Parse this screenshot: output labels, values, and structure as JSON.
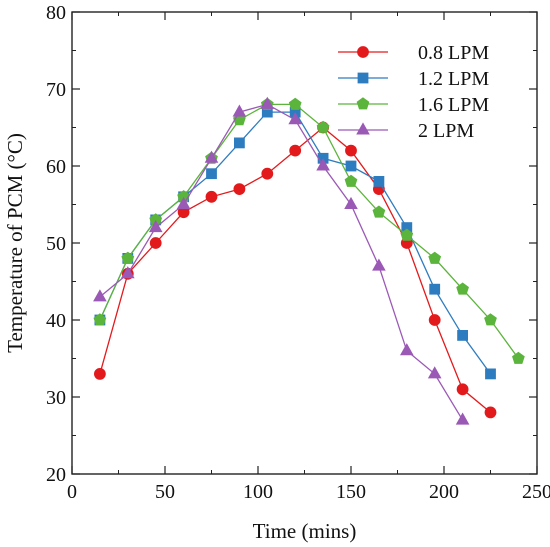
{
  "chart_data": {
    "type": "line",
    "title": "",
    "xlabel": "Time (mins)",
    "ylabel": "Temperature of PCM (°C)",
    "xlim": [
      0,
      250
    ],
    "ylim": [
      20,
      80
    ],
    "xticks": [
      0,
      50,
      100,
      150,
      200,
      250
    ],
    "yticks": [
      20,
      30,
      40,
      50,
      60,
      70,
      80
    ],
    "grid": false,
    "legend_position": "top-right",
    "series": [
      {
        "name": "0.8 LPM",
        "color": "#e31a1c",
        "marker": "circle",
        "points": [
          [
            15,
            33
          ],
          [
            30,
            46
          ],
          [
            45,
            50
          ],
          [
            60,
            54
          ],
          [
            75,
            56
          ],
          [
            90,
            57
          ],
          [
            105,
            59
          ],
          [
            120,
            62
          ],
          [
            135,
            65
          ],
          [
            150,
            62
          ],
          [
            165,
            57
          ],
          [
            180,
            50
          ],
          [
            195,
            40
          ],
          [
            210,
            31
          ],
          [
            225,
            28
          ]
        ]
      },
      {
        "name": "1.2 LPM",
        "color": "#2e7cc0",
        "marker": "square",
        "points": [
          [
            15,
            40
          ],
          [
            30,
            48
          ],
          [
            45,
            53
          ],
          [
            60,
            56
          ],
          [
            75,
            59
          ],
          [
            90,
            63
          ],
          [
            105,
            67
          ],
          [
            120,
            67
          ],
          [
            135,
            61
          ],
          [
            150,
            60
          ],
          [
            165,
            58
          ],
          [
            180,
            52
          ],
          [
            195,
            44
          ],
          [
            210,
            38
          ],
          [
            225,
            33
          ]
        ]
      },
      {
        "name": "1.6 LPM",
        "color": "#5bb43b",
        "marker": "pentagon",
        "points": [
          [
            15,
            40
          ],
          [
            30,
            48
          ],
          [
            45,
            53
          ],
          [
            60,
            56
          ],
          [
            75,
            61
          ],
          [
            90,
            66
          ],
          [
            105,
            68
          ],
          [
            120,
            68
          ],
          [
            135,
            65
          ],
          [
            150,
            58
          ],
          [
            165,
            54
          ],
          [
            180,
            51
          ],
          [
            195,
            48
          ],
          [
            210,
            44
          ],
          [
            225,
            40
          ],
          [
            240,
            35
          ]
        ]
      },
      {
        "name": "2 LPM",
        "color": "#9b59b6",
        "marker": "triangle",
        "points": [
          [
            15,
            43
          ],
          [
            30,
            46
          ],
          [
            45,
            52
          ],
          [
            60,
            55
          ],
          [
            75,
            61
          ],
          [
            90,
            67
          ],
          [
            105,
            68
          ],
          [
            120,
            66
          ],
          [
            135,
            60
          ],
          [
            150,
            55
          ],
          [
            165,
            47
          ],
          [
            180,
            36
          ],
          [
            195,
            33
          ],
          [
            210,
            27
          ]
        ]
      }
    ]
  }
}
